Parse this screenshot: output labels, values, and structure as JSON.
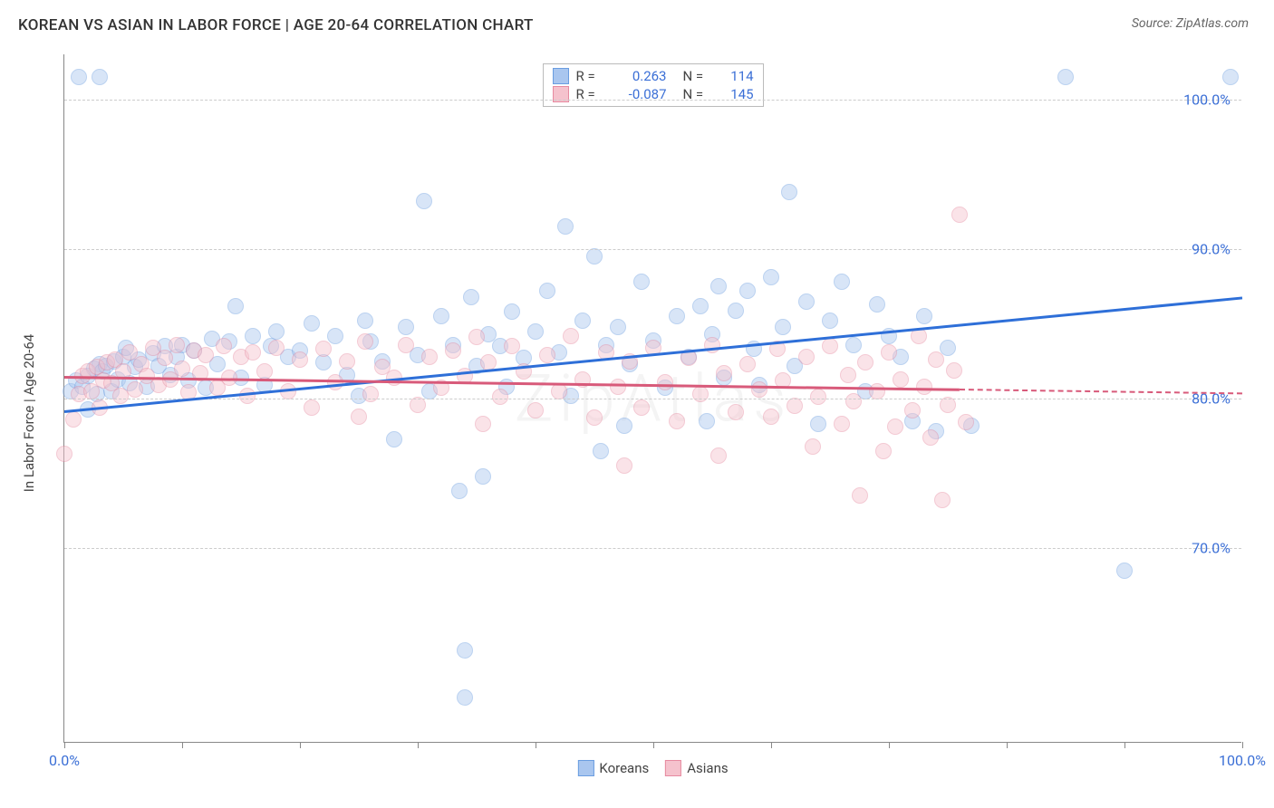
{
  "title": "KOREAN VS ASIAN IN LABOR FORCE | AGE 20-64 CORRELATION CHART",
  "source": "Source: ZipAtlas.com",
  "watermark": "ZipAtlas",
  "chart": {
    "type": "scatter",
    "background": "#ffffff",
    "grid_color": "#cccccc",
    "axis_color": "#888888",
    "ylabel": "In Labor Force | Age 20-64",
    "xlim": [
      0,
      100
    ],
    "ylim": [
      57,
      103
    ],
    "xtick_step": 10,
    "xtick_labels_shown": {
      "0": "0.0%",
      "100": "100.0%"
    },
    "ytick_step": 10,
    "ytick_labels": {
      "70": "70.0%",
      "80": "80.0%",
      "90": "90.0%",
      "100": "100.0%"
    },
    "label_color": "#3b6fd6",
    "label_fontsize": 16,
    "ylabel_fontsize": 15,
    "marker_radius": 9,
    "marker_opacity": 0.45,
    "series": [
      {
        "name": "Koreans",
        "color_fill": "#a9c6ef",
        "color_stroke": "#6a9de0",
        "R": "0.263",
        "N": "114",
        "trend": {
          "x1": 0,
          "y1": 79.2,
          "x2": 100,
          "y2": 86.8,
          "color": "#2e6fd8",
          "solid_to_x": 100
        },
        "points": [
          [
            0.5,
            80.5
          ],
          [
            1,
            81.2
          ],
          [
            1.2,
            101.5
          ],
          [
            1.5,
            80.8
          ],
          [
            2,
            81.5
          ],
          [
            2,
            79.3
          ],
          [
            2.5,
            82
          ],
          [
            2.8,
            80.3
          ],
          [
            3,
            82.3
          ],
          [
            3,
            101.5
          ],
          [
            3.2,
            81.8
          ],
          [
            3.5,
            82.2
          ],
          [
            4,
            80.5
          ],
          [
            4.2,
            82.5
          ],
          [
            4.5,
            81.3
          ],
          [
            5,
            82.8
          ],
          [
            5.2,
            83.4
          ],
          [
            5.5,
            81
          ],
          [
            6,
            82.1
          ],
          [
            6.3,
            82.6
          ],
          [
            7,
            80.8
          ],
          [
            7.5,
            83
          ],
          [
            8,
            82.2
          ],
          [
            8.5,
            83.5
          ],
          [
            9,
            81.6
          ],
          [
            9.5,
            82.8
          ],
          [
            10,
            83.6
          ],
          [
            10.5,
            81.2
          ],
          [
            11,
            83.2
          ],
          [
            12,
            80.7
          ],
          [
            12.5,
            84
          ],
          [
            13,
            82.3
          ],
          [
            14,
            83.8
          ],
          [
            14.5,
            86.2
          ],
          [
            15,
            81.4
          ],
          [
            16,
            84.2
          ],
          [
            17,
            80.9
          ],
          [
            17.5,
            83.5
          ],
          [
            18,
            84.5
          ],
          [
            19,
            82.8
          ],
          [
            20,
            83.2
          ],
          [
            21,
            85
          ],
          [
            22,
            82.4
          ],
          [
            23,
            84.2
          ],
          [
            24,
            81.6
          ],
          [
            25,
            80.2
          ],
          [
            25.5,
            85.2
          ],
          [
            26,
            83.8
          ],
          [
            27,
            82.5
          ],
          [
            28,
            77.3
          ],
          [
            29,
            84.8
          ],
          [
            30,
            82.9
          ],
          [
            30.5,
            93.2
          ],
          [
            31,
            80.5
          ],
          [
            32,
            85.5
          ],
          [
            33,
            83.6
          ],
          [
            33.5,
            73.8
          ],
          [
            34,
            60
          ],
          [
            34,
            63.2
          ],
          [
            34.5,
            86.8
          ],
          [
            35,
            82.2
          ],
          [
            35.5,
            74.8
          ],
          [
            36,
            84.3
          ],
          [
            37,
            83.5
          ],
          [
            37.5,
            80.8
          ],
          [
            38,
            85.8
          ],
          [
            39,
            82.7
          ],
          [
            40,
            84.5
          ],
          [
            41,
            87.2
          ],
          [
            42,
            83.1
          ],
          [
            42.5,
            91.5
          ],
          [
            43,
            80.2
          ],
          [
            44,
            85.2
          ],
          [
            45,
            89.5
          ],
          [
            45.5,
            76.5
          ],
          [
            46,
            83.6
          ],
          [
            47,
            84.8
          ],
          [
            47.5,
            78.2
          ],
          [
            48,
            82.3
          ],
          [
            49,
            87.8
          ],
          [
            50,
            83.9
          ],
          [
            51,
            80.7
          ],
          [
            52,
            85.5
          ],
          [
            53,
            82.8
          ],
          [
            54,
            86.2
          ],
          [
            54.5,
            78.5
          ],
          [
            55,
            84.3
          ],
          [
            55.5,
            87.5
          ],
          [
            56,
            81.4
          ],
          [
            57,
            85.9
          ],
          [
            58,
            87.2
          ],
          [
            58.5,
            83.3
          ],
          [
            59,
            80.9
          ],
          [
            60,
            88.1
          ],
          [
            61,
            84.8
          ],
          [
            61.5,
            93.8
          ],
          [
            62,
            82.2
          ],
          [
            63,
            86.5
          ],
          [
            64,
            78.3
          ],
          [
            65,
            85.2
          ],
          [
            66,
            87.8
          ],
          [
            67,
            83.6
          ],
          [
            68,
            80.5
          ],
          [
            69,
            86.3
          ],
          [
            70,
            84.2
          ],
          [
            71,
            82.8
          ],
          [
            72,
            78.5
          ],
          [
            73,
            85.5
          ],
          [
            74,
            77.8
          ],
          [
            75,
            83.4
          ],
          [
            77,
            78.2
          ],
          [
            85,
            101.5
          ],
          [
            90,
            68.5
          ],
          [
            99,
            101.5
          ]
        ]
      },
      {
        "name": "Asians",
        "color_fill": "#f5c2cd",
        "color_stroke": "#e68aa0",
        "R": "-0.087",
        "N": "145",
        "trend": {
          "x1": 0,
          "y1": 81.5,
          "x2": 100,
          "y2": 80.4,
          "color": "#d85a7a",
          "solid_to_x": 76
        },
        "points": [
          [
            0,
            76.3
          ],
          [
            0.8,
            78.6
          ],
          [
            1.2,
            80.3
          ],
          [
            1.5,
            81.5
          ],
          [
            2,
            81.8
          ],
          [
            2.3,
            80.5
          ],
          [
            2.8,
            82.1
          ],
          [
            3,
            79.4
          ],
          [
            3.3,
            81.2
          ],
          [
            3.6,
            82.4
          ],
          [
            4,
            81
          ],
          [
            4.3,
            82.6
          ],
          [
            4.8,
            80.2
          ],
          [
            5,
            81.8
          ],
          [
            5.5,
            83.1
          ],
          [
            6,
            80.6
          ],
          [
            6.5,
            82.3
          ],
          [
            7,
            81.5
          ],
          [
            7.5,
            83.4
          ],
          [
            8,
            80.9
          ],
          [
            8.5,
            82.7
          ],
          [
            9,
            81.3
          ],
          [
            9.5,
            83.6
          ],
          [
            10,
            82
          ],
          [
            10.5,
            80.4
          ],
          [
            11,
            83.2
          ],
          [
            11.5,
            81.7
          ],
          [
            12,
            82.9
          ],
          [
            13,
            80.7
          ],
          [
            13.5,
            83.5
          ],
          [
            14,
            81.4
          ],
          [
            15,
            82.8
          ],
          [
            15.5,
            80.2
          ],
          [
            16,
            83.1
          ],
          [
            17,
            81.8
          ],
          [
            18,
            83.4
          ],
          [
            19,
            80.5
          ],
          [
            20,
            82.6
          ],
          [
            21,
            79.4
          ],
          [
            22,
            83.3
          ],
          [
            23,
            81.1
          ],
          [
            24,
            82.5
          ],
          [
            25,
            78.8
          ],
          [
            25.5,
            83.8
          ],
          [
            26,
            80.3
          ],
          [
            27,
            82.1
          ],
          [
            28,
            81.4
          ],
          [
            29,
            83.6
          ],
          [
            30,
            79.6
          ],
          [
            31,
            82.8
          ],
          [
            32,
            80.7
          ],
          [
            33,
            83.2
          ],
          [
            34,
            81.5
          ],
          [
            35,
            84.1
          ],
          [
            35.5,
            78.3
          ],
          [
            36,
            82.4
          ],
          [
            37,
            80.1
          ],
          [
            38,
            83.5
          ],
          [
            39,
            81.8
          ],
          [
            40,
            79.2
          ],
          [
            41,
            82.9
          ],
          [
            42,
            80.5
          ],
          [
            43,
            84.2
          ],
          [
            44,
            81.3
          ],
          [
            45,
            78.7
          ],
          [
            46,
            83.1
          ],
          [
            47,
            80.8
          ],
          [
            47.5,
            75.5
          ],
          [
            48,
            82.5
          ],
          [
            49,
            79.4
          ],
          [
            50,
            83.4
          ],
          [
            51,
            81.1
          ],
          [
            52,
            78.5
          ],
          [
            53,
            82.7
          ],
          [
            54,
            80.3
          ],
          [
            55,
            83.6
          ],
          [
            55.5,
            76.2
          ],
          [
            56,
            81.7
          ],
          [
            57,
            79.1
          ],
          [
            58,
            82.3
          ],
          [
            59,
            80.6
          ],
          [
            60,
            78.8
          ],
          [
            60.5,
            83.3
          ],
          [
            61,
            81.2
          ],
          [
            62,
            79.5
          ],
          [
            63,
            82.8
          ],
          [
            63.5,
            76.8
          ],
          [
            64,
            80.1
          ],
          [
            65,
            83.5
          ],
          [
            66,
            78.3
          ],
          [
            66.5,
            81.6
          ],
          [
            67,
            79.8
          ],
          [
            67.5,
            73.5
          ],
          [
            68,
            82.4
          ],
          [
            69,
            80.5
          ],
          [
            69.5,
            76.5
          ],
          [
            70,
            83.1
          ],
          [
            70.5,
            78.1
          ],
          [
            71,
            81.3
          ],
          [
            72,
            79.2
          ],
          [
            72.5,
            84.2
          ],
          [
            73,
            80.8
          ],
          [
            73.5,
            77.4
          ],
          [
            74,
            82.6
          ],
          [
            74.5,
            73.2
          ],
          [
            75,
            79.6
          ],
          [
            75.5,
            81.9
          ],
          [
            76,
            92.3
          ],
          [
            76.5,
            78.4
          ]
        ]
      }
    ],
    "legend": {
      "swatch_koreans_fill": "#a9c6ef",
      "swatch_koreans_stroke": "#6a9de0",
      "swatch_asians_fill": "#f5c2cd",
      "swatch_asians_stroke": "#e68aa0"
    }
  }
}
